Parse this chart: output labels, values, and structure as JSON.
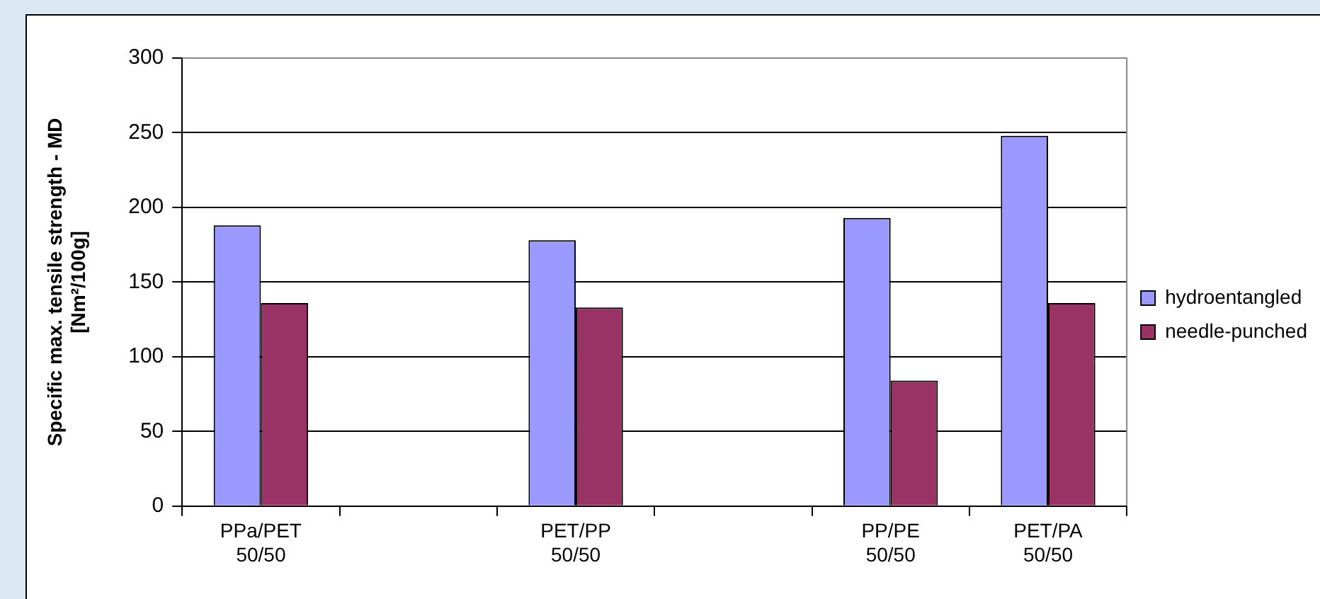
{
  "chart_data": {
    "type": "bar",
    "ylabel": "Specific max. tensile strength - MD\n[Nm²/100g]",
    "categories": [
      "PPa/PET\n50/50",
      null,
      "PET/PP\n50/50",
      null,
      "PP/PE\n50/50",
      "PET/PA\n50/50"
    ],
    "series": [
      {
        "name": "hydroentangled",
        "color": "#9999ff",
        "values": [
          188,
          null,
          178,
          null,
          193,
          248
        ]
      },
      {
        "name": "needle-punched",
        "color": "#993366",
        "values": [
          136,
          null,
          133,
          null,
          84,
          136
        ]
      }
    ],
    "ylim": [
      0,
      300
    ],
    "yticks": [
      0,
      50,
      100,
      150,
      200,
      250,
      300
    ],
    "grid": "y",
    "legend": "right"
  }
}
